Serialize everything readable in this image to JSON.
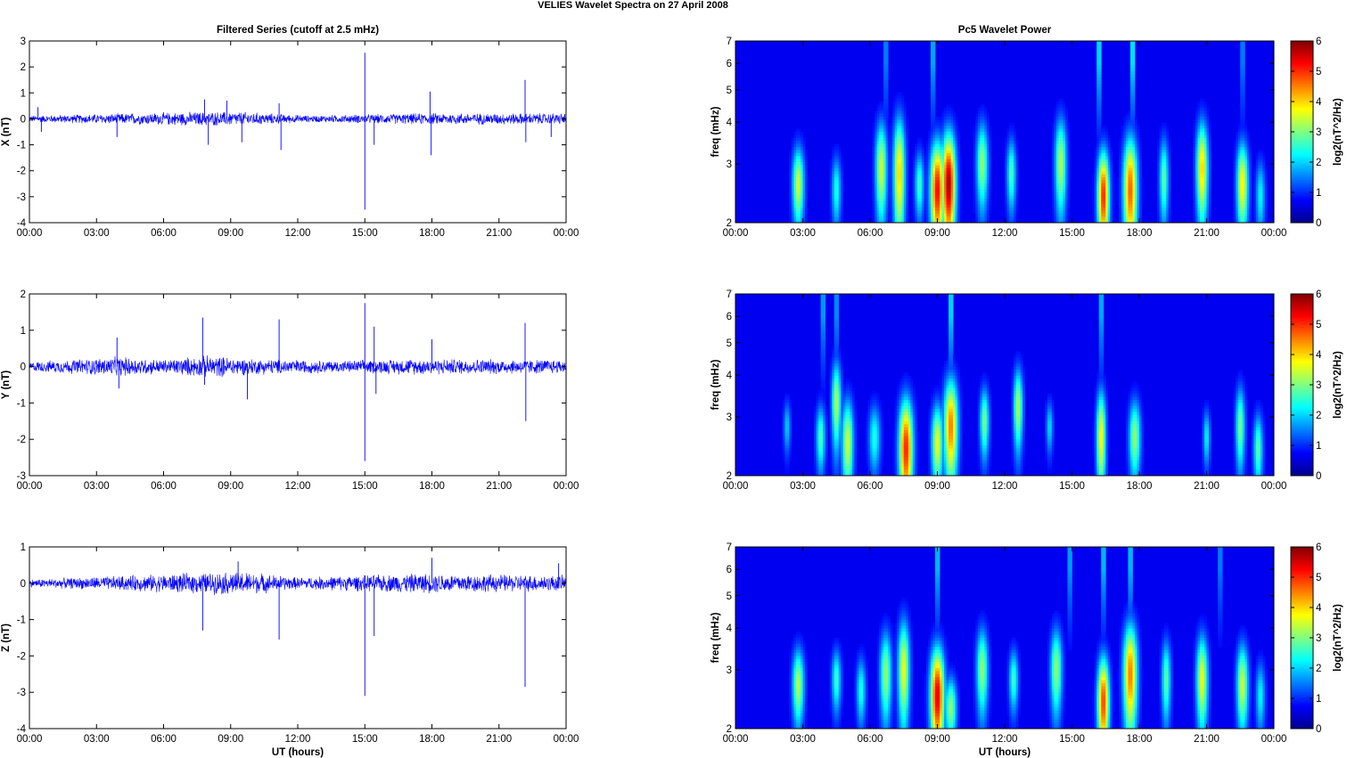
{
  "suptitle": "VELIES Wavelet Spectra on 27 April     2008",
  "colors": {
    "series": "#0000ff",
    "background": "#ffffff",
    "axis": "#000000",
    "colormap": "jet"
  },
  "chart_data": [
    {
      "type": "line",
      "panel": "series-x",
      "title": "Filtered Series (cutoff at 2.5 mHz)",
      "ylabel": "X (nT)",
      "xlabel": "",
      "xlim": [
        "00:00",
        "00:00"
      ],
      "xticks": [
        "00:00",
        "03:00",
        "06:00",
        "09:00",
        "12:00",
        "15:00",
        "18:00",
        "21:00",
        "00:00"
      ],
      "ylim": [
        -4,
        3
      ],
      "yticks": [
        "-4",
        "-3",
        "-2",
        "-1",
        "0",
        "1",
        "2",
        "3"
      ],
      "noise_amplitude": [
        [
          0,
          0.12
        ],
        [
          7.5,
          0.25
        ],
        [
          9.5,
          0.25
        ],
        [
          12.5,
          0.12
        ],
        [
          17.5,
          0.2
        ],
        [
          23.9,
          0.2
        ]
      ],
      "spikes": [
        {
          "t": "00:23",
          "y": 0.45
        },
        {
          "t": "00:32",
          "y": -0.5
        },
        {
          "t": "03:55",
          "y": -0.7
        },
        {
          "t": "07:50",
          "y": 0.75
        },
        {
          "t": "08:00",
          "y": -1.0
        },
        {
          "t": "08:50",
          "y": 0.7
        },
        {
          "t": "09:30",
          "y": -0.9
        },
        {
          "t": "11:10",
          "y": 0.6
        },
        {
          "t": "11:15",
          "y": -1.2
        },
        {
          "t": "15:00",
          "y": 2.55
        },
        {
          "t": "15:00",
          "y": -3.5
        },
        {
          "t": "15:25",
          "y": -1.0
        },
        {
          "t": "17:55",
          "y": 1.05
        },
        {
          "t": "17:58",
          "y": -1.4
        },
        {
          "t": "22:10",
          "y": 1.5
        },
        {
          "t": "22:12",
          "y": -0.9
        },
        {
          "t": "23:20",
          "y": -0.7
        }
      ]
    },
    {
      "type": "heatmap",
      "panel": "power-x",
      "title": "Pc5 Wavelet Power",
      "ylabel": "freq (mHz)",
      "xlabel": "",
      "xticks": [
        "00:00",
        "03:00",
        "06:00",
        "09:00",
        "12:00",
        "15:00",
        "18:00",
        "21:00",
        "00:00"
      ],
      "yscale": "log",
      "ylim": [
        2,
        7
      ],
      "yticks": [
        "2",
        "3",
        "4",
        "5",
        "6",
        "7"
      ],
      "colorbar": {
        "label": "log2(nT^2/Hz)",
        "range": [
          0,
          6
        ],
        "ticks": [
          "0",
          "1",
          "2",
          "3",
          "4",
          "5",
          "6"
        ]
      },
      "blobs": [
        {
          "t": 2.8,
          "f": 2.6,
          "power": 3.2,
          "width_h": 0.25,
          "height_f": 0.7
        },
        {
          "t": 4.5,
          "f": 2.5,
          "power": 2.0,
          "width_h": 0.2,
          "height_f": 0.6
        },
        {
          "t": 6.5,
          "f": 2.9,
          "power": 3.2,
          "width_h": 0.25,
          "height_f": 1.0
        },
        {
          "t": 7.3,
          "f": 2.8,
          "power": 3.8,
          "width_h": 0.25,
          "height_f": 1.2
        },
        {
          "t": 8.2,
          "f": 2.6,
          "power": 2.2,
          "width_h": 0.2,
          "height_f": 0.6
        },
        {
          "t": 9.0,
          "f": 2.5,
          "power": 5.2,
          "width_h": 0.3,
          "height_f": 0.9
        },
        {
          "t": 9.5,
          "f": 2.6,
          "power": 5.8,
          "width_h": 0.3,
          "height_f": 1.0
        },
        {
          "t": 11.0,
          "f": 3.0,
          "power": 2.8,
          "width_h": 0.25,
          "height_f": 0.9
        },
        {
          "t": 12.3,
          "f": 2.8,
          "power": 2.3,
          "width_h": 0.2,
          "height_f": 0.7
        },
        {
          "t": 14.5,
          "f": 3.0,
          "power": 3.0,
          "width_h": 0.25,
          "height_f": 1.0
        },
        {
          "t": 16.4,
          "f": 2.4,
          "power": 5.0,
          "width_h": 0.25,
          "height_f": 0.8
        },
        {
          "t": 17.6,
          "f": 2.5,
          "power": 4.6,
          "width_h": 0.3,
          "height_f": 1.0
        },
        {
          "t": 19.1,
          "f": 2.7,
          "power": 2.4,
          "width_h": 0.2,
          "height_f": 0.8
        },
        {
          "t": 20.8,
          "f": 2.9,
          "power": 3.8,
          "width_h": 0.25,
          "height_f": 1.0
        },
        {
          "t": 22.6,
          "f": 2.6,
          "power": 3.6,
          "width_h": 0.25,
          "height_f": 0.8
        },
        {
          "t": 23.4,
          "f": 2.4,
          "power": 1.8,
          "width_h": 0.2,
          "height_f": 0.6
        }
      ],
      "streaks": [
        {
          "t": 6.7,
          "power": 1.8
        },
        {
          "t": 8.8,
          "power": 2.4
        },
        {
          "t": 16.2,
          "power": 3.0
        },
        {
          "t": 17.7,
          "power": 3.2
        },
        {
          "t": 22.6,
          "power": 1.8
        }
      ]
    },
    {
      "type": "line",
      "panel": "series-y",
      "title": "",
      "ylabel": "Y (nT)",
      "xlabel": "",
      "xticks": [
        "00:00",
        "03:00",
        "06:00",
        "09:00",
        "12:00",
        "15:00",
        "18:00",
        "21:00",
        "00:00"
      ],
      "ylim": [
        -3,
        2
      ],
      "yticks": [
        "-3",
        "-2",
        "-1",
        "0",
        "1",
        "2"
      ],
      "noise_amplitude": [
        [
          0,
          0.12
        ],
        [
          4.0,
          0.25
        ],
        [
          6.0,
          0.18
        ],
        [
          8.0,
          0.28
        ],
        [
          10.0,
          0.2
        ],
        [
          14.0,
          0.15
        ],
        [
          17.0,
          0.2
        ],
        [
          23.9,
          0.18
        ]
      ],
      "spikes": [
        {
          "t": "03:55",
          "y": 0.8
        },
        {
          "t": "04:00",
          "y": -0.6
        },
        {
          "t": "07:45",
          "y": 1.35
        },
        {
          "t": "07:50",
          "y": -0.5
        },
        {
          "t": "09:45",
          "y": -0.9
        },
        {
          "t": "11:10",
          "y": 1.3
        },
        {
          "t": "15:00",
          "y": 1.75
        },
        {
          "t": "15:00",
          "y": -2.6
        },
        {
          "t": "15:25",
          "y": 1.1
        },
        {
          "t": "15:30",
          "y": -0.75
        },
        {
          "t": "18:00",
          "y": 0.75
        },
        {
          "t": "22:10",
          "y": 1.2
        },
        {
          "t": "22:12",
          "y": -1.5
        }
      ]
    },
    {
      "type": "heatmap",
      "panel": "power-y",
      "title": "",
      "ylabel": "freq (mHz)",
      "xlabel": "",
      "xticks": [
        "00:00",
        "03:00",
        "06:00",
        "09:00",
        "12:00",
        "15:00",
        "18:00",
        "21:00",
        "00:00"
      ],
      "yscale": "log",
      "ylim": [
        2,
        7
      ],
      "yticks": [
        "2",
        "3",
        "4",
        "5",
        "6",
        "7"
      ],
      "colorbar": {
        "label": "log2(nT^2/Hz)",
        "range": [
          0,
          6
        ],
        "ticks": [
          "0",
          "1",
          "2",
          "3",
          "4",
          "5",
          "6"
        ]
      },
      "blobs": [
        {
          "t": 2.3,
          "f": 2.8,
          "power": 1.5,
          "width_h": 0.15,
          "height_f": 0.5
        },
        {
          "t": 3.8,
          "f": 2.6,
          "power": 2.3,
          "width_h": 0.2,
          "height_f": 0.6
        },
        {
          "t": 4.5,
          "f": 3.3,
          "power": 3.0,
          "width_h": 0.2,
          "height_f": 1.0
        },
        {
          "t": 5.0,
          "f": 2.5,
          "power": 3.2,
          "width_h": 0.25,
          "height_f": 0.8
        },
        {
          "t": 6.2,
          "f": 2.6,
          "power": 2.0,
          "width_h": 0.25,
          "height_f": 0.6
        },
        {
          "t": 7.6,
          "f": 2.4,
          "power": 5.0,
          "width_h": 0.3,
          "height_f": 0.9
        },
        {
          "t": 9.0,
          "f": 2.5,
          "power": 3.4,
          "width_h": 0.25,
          "height_f": 0.7
        },
        {
          "t": 9.6,
          "f": 2.8,
          "power": 4.4,
          "width_h": 0.3,
          "height_f": 1.0
        },
        {
          "t": 11.1,
          "f": 2.9,
          "power": 2.6,
          "width_h": 0.2,
          "height_f": 0.7
        },
        {
          "t": 12.6,
          "f": 3.2,
          "power": 3.0,
          "width_h": 0.2,
          "height_f": 0.9
        },
        {
          "t": 14.0,
          "f": 2.8,
          "power": 1.6,
          "width_h": 0.15,
          "height_f": 0.5
        },
        {
          "t": 16.3,
          "f": 2.6,
          "power": 3.6,
          "width_h": 0.2,
          "height_f": 0.9
        },
        {
          "t": 17.8,
          "f": 2.6,
          "power": 2.8,
          "width_h": 0.25,
          "height_f": 0.7
        },
        {
          "t": 21.0,
          "f": 2.6,
          "power": 1.8,
          "width_h": 0.15,
          "height_f": 0.5
        },
        {
          "t": 22.5,
          "f": 2.8,
          "power": 2.6,
          "width_h": 0.2,
          "height_f": 0.8
        },
        {
          "t": 23.3,
          "f": 2.4,
          "power": 2.4,
          "width_h": 0.2,
          "height_f": 0.6
        }
      ],
      "streaks": [
        {
          "t": 3.9,
          "power": 2.2
        },
        {
          "t": 4.5,
          "power": 2.0
        },
        {
          "t": 9.6,
          "power": 3.0
        },
        {
          "t": 16.3,
          "power": 2.4
        }
      ]
    },
    {
      "type": "line",
      "panel": "series-z",
      "title": "",
      "ylabel": "Z (nT)",
      "xlabel": "UT (hours)",
      "xticks": [
        "00:00",
        "03:00",
        "06:00",
        "09:00",
        "12:00",
        "15:00",
        "18:00",
        "21:00",
        "00:00"
      ],
      "ylim": [
        -4,
        1
      ],
      "yticks": [
        "-4",
        "-3",
        "-2",
        "-1",
        "0",
        "1"
      ],
      "noise_amplitude": [
        [
          0,
          0.1
        ],
        [
          7.0,
          0.25
        ],
        [
          9.5,
          0.3
        ],
        [
          12.0,
          0.15
        ],
        [
          17.5,
          0.25
        ],
        [
          23.9,
          0.2
        ]
      ],
      "spikes": [
        {
          "t": "07:45",
          "y": -1.3
        },
        {
          "t": "09:20",
          "y": 0.6
        },
        {
          "t": "11:10",
          "y": -1.55
        },
        {
          "t": "15:00",
          "y": -3.1
        },
        {
          "t": "15:25",
          "y": -1.45
        },
        {
          "t": "18:00",
          "y": 0.7
        },
        {
          "t": "22:10",
          "y": -2.85
        },
        {
          "t": "23:40",
          "y": 0.55
        }
      ]
    },
    {
      "type": "heatmap",
      "panel": "power-z",
      "title": "",
      "ylabel": "freq (mHz)",
      "xlabel": "UT (hours)",
      "xticks": [
        "00:00",
        "03:00",
        "06:00",
        "09:00",
        "12:00",
        "15:00",
        "18:00",
        "21:00",
        "00:00"
      ],
      "yscale": "log",
      "ylim": [
        2,
        7
      ],
      "yticks": [
        "2",
        "3",
        "4",
        "5",
        "6",
        "7"
      ],
      "colorbar": {
        "label": "log2(nT^2/Hz)",
        "range": [
          0,
          6
        ],
        "ticks": [
          "0",
          "1",
          "2",
          "3",
          "4",
          "5",
          "6"
        ]
      },
      "blobs": [
        {
          "t": 2.8,
          "f": 2.7,
          "power": 3.0,
          "width_h": 0.25,
          "height_f": 0.7
        },
        {
          "t": 4.5,
          "f": 2.8,
          "power": 2.2,
          "width_h": 0.2,
          "height_f": 0.6
        },
        {
          "t": 5.6,
          "f": 2.6,
          "power": 2.0,
          "width_h": 0.2,
          "height_f": 0.6
        },
        {
          "t": 6.7,
          "f": 2.9,
          "power": 2.8,
          "width_h": 0.25,
          "height_f": 0.9
        },
        {
          "t": 7.5,
          "f": 3.0,
          "power": 3.4,
          "width_h": 0.25,
          "height_f": 1.1
        },
        {
          "t": 9.0,
          "f": 2.5,
          "power": 5.4,
          "width_h": 0.3,
          "height_f": 0.9
        },
        {
          "t": 9.6,
          "f": 2.3,
          "power": 2.8,
          "width_h": 0.25,
          "height_f": 0.5
        },
        {
          "t": 11.0,
          "f": 3.0,
          "power": 2.8,
          "width_h": 0.25,
          "height_f": 0.9
        },
        {
          "t": 12.4,
          "f": 2.8,
          "power": 2.2,
          "width_h": 0.2,
          "height_f": 0.6
        },
        {
          "t": 14.3,
          "f": 3.0,
          "power": 2.8,
          "width_h": 0.25,
          "height_f": 0.9
        },
        {
          "t": 16.4,
          "f": 2.4,
          "power": 4.8,
          "width_h": 0.25,
          "height_f": 0.8
        },
        {
          "t": 17.6,
          "f": 2.9,
          "power": 4.4,
          "width_h": 0.3,
          "height_f": 1.1
        },
        {
          "t": 19.2,
          "f": 2.8,
          "power": 2.4,
          "width_h": 0.2,
          "height_f": 0.8
        },
        {
          "t": 20.8,
          "f": 2.8,
          "power": 3.4,
          "width_h": 0.25,
          "height_f": 0.9
        },
        {
          "t": 22.6,
          "f": 2.7,
          "power": 3.2,
          "width_h": 0.25,
          "height_f": 0.8
        },
        {
          "t": 23.4,
          "f": 2.5,
          "power": 1.8,
          "width_h": 0.2,
          "height_f": 0.6
        }
      ],
      "streaks": [
        {
          "t": 9.0,
          "power": 2.6
        },
        {
          "t": 14.9,
          "power": 2.2
        },
        {
          "t": 16.4,
          "power": 2.6
        },
        {
          "t": 17.6,
          "power": 2.6
        },
        {
          "t": 21.6,
          "power": 1.8
        }
      ]
    }
  ]
}
